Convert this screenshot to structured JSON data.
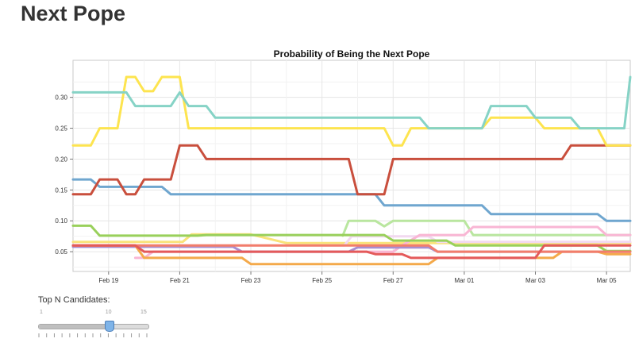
{
  "page": {
    "title": "Next Pope"
  },
  "chart_data": {
    "type": "line",
    "title": "Probability of Being the Next Pope",
    "xlabel": "",
    "ylabel": "",
    "x_type": "date",
    "x_ticks": [
      "Feb 19",
      "Feb 21",
      "Feb 23",
      "Feb 25",
      "Feb 27",
      "Mar 01",
      "Mar 03",
      "Mar 05"
    ],
    "x_range": [
      "2013-02-18T00:00",
      "2013-03-05T16:00"
    ],
    "ylim": [
      0.018,
      0.36
    ],
    "y_ticks": [
      0.05,
      0.1,
      0.15,
      0.2,
      0.25,
      0.3
    ],
    "y_tick_labels": [
      "0.05",
      "0.10",
      "0.15",
      "0.20",
      "0.25",
      "0.30"
    ],
    "grid": true,
    "series": [
      {
        "color": "#f9e37a",
        "values": [
          [
            "2013-02-18T00:00",
            0.066
          ],
          [
            "2013-02-21T02:00",
            0.066
          ],
          [
            "2013-02-21T08:00",
            0.078
          ],
          [
            "2013-02-23T00:00",
            0.078
          ],
          [
            "2013-02-24T00:00",
            0.064
          ],
          [
            "2013-03-05T16:00",
            0.064
          ]
        ]
      },
      {
        "color": "#f2d9f0",
        "values": [
          [
            "2013-02-18T00:00",
            0.06
          ],
          [
            "2013-02-25T15:00",
            0.06
          ],
          [
            "2013-02-25T20:00",
            0.075
          ],
          [
            "2013-02-28T00:00",
            0.075
          ],
          [
            "2013-02-28T06:00",
            0.066
          ],
          [
            "2013-03-05T16:00",
            0.066
          ]
        ]
      },
      {
        "color": "#b9e69f",
        "values": [
          [
            "2013-02-25T14:00",
            0.076
          ],
          [
            "2013-02-25T18:00",
            0.1
          ],
          [
            "2013-02-26T12:00",
            0.1
          ],
          [
            "2013-02-26T18:00",
            0.091
          ],
          [
            "2013-02-27T00:00",
            0.1
          ],
          [
            "2013-03-01T00:00",
            0.1
          ],
          [
            "2013-03-01T06:00",
            0.077
          ],
          [
            "2013-03-05T16:00",
            0.077
          ]
        ]
      },
      {
        "color": "#f9b6d4",
        "values": [
          [
            "2013-02-19T18:00",
            0.04
          ],
          [
            "2013-02-20T00:00",
            0.04
          ],
          [
            "2013-02-20T06:00",
            0.05
          ],
          [
            "2013-02-27T00:00",
            0.05
          ],
          [
            "2013-02-27T06:00",
            0.06
          ],
          [
            "2013-02-27T18:00",
            0.077
          ],
          [
            "2013-03-01T00:00",
            0.077
          ],
          [
            "2013-03-01T06:00",
            0.09
          ],
          [
            "2013-03-04T18:00",
            0.09
          ],
          [
            "2013-03-05T00:00",
            0.077
          ],
          [
            "2013-03-05T16:00",
            0.077
          ]
        ]
      },
      {
        "color": "#a88ed1",
        "values": [
          [
            "2013-02-18T00:00",
            0.058
          ],
          [
            "2013-02-22T12:00",
            0.058
          ],
          [
            "2013-02-22T18:00",
            0.05
          ],
          [
            "2013-02-25T18:00",
            0.05
          ],
          [
            "2013-02-26T00:00",
            0.057
          ],
          [
            "2013-02-28T00:00",
            0.057
          ],
          [
            "2013-02-28T06:00",
            0.05
          ],
          [
            "2013-03-05T16:00",
            0.05
          ]
        ]
      },
      {
        "color": "#99d05b",
        "values": [
          [
            "2013-02-18T00:00",
            0.092
          ],
          [
            "2013-02-18T12:00",
            0.092
          ],
          [
            "2013-02-18T18:00",
            0.076
          ],
          [
            "2013-02-21T12:00",
            0.076
          ],
          [
            "2013-02-21T18:00",
            0.077
          ],
          [
            "2013-02-26T18:00",
            0.077
          ],
          [
            "2013-02-27T00:00",
            0.068
          ],
          [
            "2013-02-28T12:00",
            0.068
          ],
          [
            "2013-02-28T18:00",
            0.06
          ],
          [
            "2013-03-04T18:00",
            0.06
          ],
          [
            "2013-03-05T00:00",
            0.051
          ],
          [
            "2013-03-05T16:00",
            0.051
          ]
        ]
      },
      {
        "color": "#f4a94a",
        "values": [
          [
            "2013-02-18T00:00",
            0.06
          ],
          [
            "2013-02-19T18:00",
            0.06
          ],
          [
            "2013-02-20T00:00",
            0.04
          ],
          [
            "2013-02-22T18:00",
            0.04
          ],
          [
            "2013-02-23T00:00",
            0.03
          ],
          [
            "2013-02-28T00:00",
            0.03
          ],
          [
            "2013-02-28T06:00",
            0.04
          ],
          [
            "2013-03-03T12:00",
            0.04
          ],
          [
            "2013-03-03T18:00",
            0.05
          ],
          [
            "2013-03-04T18:00",
            0.05
          ],
          [
            "2013-03-05T00:00",
            0.046
          ],
          [
            "2013-03-05T16:00",
            0.046
          ]
        ]
      },
      {
        "color": "#f27d6b",
        "values": [
          [
            "2013-02-18T00:00",
            0.06
          ],
          [
            "2013-02-28T00:00",
            0.06
          ],
          [
            "2013-02-28T06:00",
            0.05
          ],
          [
            "2013-03-05T16:00",
            0.05
          ]
        ]
      },
      {
        "color": "#e45a5a",
        "values": [
          [
            "2013-02-18T00:00",
            0.06
          ],
          [
            "2013-02-19T18:00",
            0.06
          ],
          [
            "2013-02-20T00:00",
            0.05
          ],
          [
            "2013-02-26T06:00",
            0.05
          ],
          [
            "2013-02-26T12:00",
            0.046
          ],
          [
            "2013-02-27T06:00",
            0.046
          ],
          [
            "2013-02-27T12:00",
            0.04
          ],
          [
            "2013-03-03T00:00",
            0.04
          ],
          [
            "2013-03-03T06:00",
            0.06
          ],
          [
            "2013-03-05T16:00",
            0.06
          ]
        ]
      },
      {
        "color": "#6fa6cf",
        "values": [
          [
            "2013-02-18T00:00",
            0.167
          ],
          [
            "2013-02-18T12:00",
            0.167
          ],
          [
            "2013-02-18T18:00",
            0.155
          ],
          [
            "2013-02-20T12:00",
            0.155
          ],
          [
            "2013-02-20T18:00",
            0.143
          ],
          [
            "2013-02-26T12:00",
            0.143
          ],
          [
            "2013-02-26T18:00",
            0.125
          ],
          [
            "2013-03-01T12:00",
            0.125
          ],
          [
            "2013-03-01T18:00",
            0.111
          ],
          [
            "2013-03-04T18:00",
            0.111
          ],
          [
            "2013-03-05T00:00",
            0.1
          ],
          [
            "2013-03-05T16:00",
            0.1
          ]
        ]
      },
      {
        "color": "#c94f3d",
        "values": [
          [
            "2013-02-18T00:00",
            0.143
          ],
          [
            "2013-02-18T12:00",
            0.143
          ],
          [
            "2013-02-18T18:00",
            0.167
          ],
          [
            "2013-02-19T06:00",
            0.167
          ],
          [
            "2013-02-19T12:00",
            0.143
          ],
          [
            "2013-02-19T18:00",
            0.143
          ],
          [
            "2013-02-20T00:00",
            0.167
          ],
          [
            "2013-02-20T18:00",
            0.167
          ],
          [
            "2013-02-21T00:00",
            0.222
          ],
          [
            "2013-02-21T12:00",
            0.222
          ],
          [
            "2013-02-21T18:00",
            0.2
          ],
          [
            "2013-02-25T18:00",
            0.2
          ],
          [
            "2013-02-26T00:00",
            0.143
          ],
          [
            "2013-02-26T18:00",
            0.143
          ],
          [
            "2013-02-27T00:00",
            0.2
          ],
          [
            "2013-03-03T18:00",
            0.2
          ],
          [
            "2013-03-04T00:00",
            0.222
          ],
          [
            "2013-03-05T16:00",
            0.222
          ]
        ]
      },
      {
        "color": "#fde44f",
        "values": [
          [
            "2013-02-18T00:00",
            0.222
          ],
          [
            "2013-02-18T12:00",
            0.222
          ],
          [
            "2013-02-18T18:00",
            0.25
          ],
          [
            "2013-02-19T06:00",
            0.25
          ],
          [
            "2013-02-19T12:00",
            0.333
          ],
          [
            "2013-02-19T18:00",
            0.333
          ],
          [
            "2013-02-20T00:00",
            0.31
          ],
          [
            "2013-02-20T06:00",
            0.31
          ],
          [
            "2013-02-20T12:00",
            0.333
          ],
          [
            "2013-02-21T00:00",
            0.333
          ],
          [
            "2013-02-21T06:00",
            0.25
          ],
          [
            "2013-02-26T18:00",
            0.25
          ],
          [
            "2013-02-27T00:00",
            0.222
          ],
          [
            "2013-02-27T06:00",
            0.222
          ],
          [
            "2013-02-27T12:00",
            0.25
          ],
          [
            "2013-03-01T12:00",
            0.25
          ],
          [
            "2013-03-01T18:00",
            0.267
          ],
          [
            "2013-03-03T00:00",
            0.267
          ],
          [
            "2013-03-03T06:00",
            0.25
          ],
          [
            "2013-03-04T18:00",
            0.25
          ],
          [
            "2013-03-05T00:00",
            0.222
          ],
          [
            "2013-03-05T16:00",
            0.222
          ]
        ]
      },
      {
        "color": "#86d3c6",
        "values": [
          [
            "2013-02-18T00:00",
            0.308
          ],
          [
            "2013-02-19T12:00",
            0.308
          ],
          [
            "2013-02-19T18:00",
            0.286
          ],
          [
            "2013-02-20T18:00",
            0.286
          ],
          [
            "2013-02-21T00:00",
            0.308
          ],
          [
            "2013-02-21T06:00",
            0.286
          ],
          [
            "2013-02-21T18:00",
            0.286
          ],
          [
            "2013-02-22T00:00",
            0.267
          ],
          [
            "2013-02-27T18:00",
            0.267
          ],
          [
            "2013-02-28T00:00",
            0.25
          ],
          [
            "2013-03-01T12:00",
            0.25
          ],
          [
            "2013-03-01T18:00",
            0.286
          ],
          [
            "2013-03-02T18:00",
            0.286
          ],
          [
            "2013-03-03T00:00",
            0.267
          ],
          [
            "2013-03-04T00:00",
            0.267
          ],
          [
            "2013-03-04T06:00",
            0.25
          ],
          [
            "2013-03-05T12:00",
            0.25
          ],
          [
            "2013-03-05T16:00",
            0.333
          ]
        ]
      }
    ]
  },
  "slider": {
    "label": "Top N Candidates:",
    "min": 1,
    "max": 15,
    "value": 10,
    "min_label": "1",
    "value_label": "10",
    "max_label": "15"
  }
}
